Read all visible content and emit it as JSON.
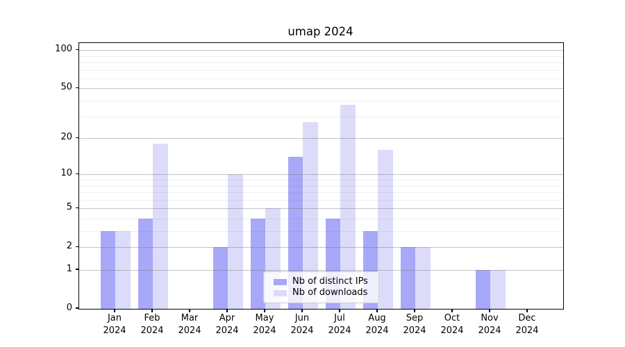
{
  "chart_data": {
    "type": "bar",
    "title": "umap 2024",
    "xlabel": "",
    "ylabel": "",
    "categories": [
      "Jan",
      "Feb",
      "Mar",
      "Apr",
      "May",
      "Jun",
      "Jul",
      "Aug",
      "Sep",
      "Oct",
      "Nov",
      "Dec"
    ],
    "category_year": "2024",
    "series": [
      {
        "name": "Nb of distinct IPs",
        "color": "#a8a8f8",
        "values": [
          3,
          4,
          0,
          2,
          4,
          14,
          4,
          3,
          2,
          0,
          1,
          0
        ]
      },
      {
        "name": "Nb of downloads",
        "color": "#dcdcfa",
        "values": [
          3,
          18,
          0,
          10,
          5,
          27,
          37,
          16,
          2,
          0,
          1,
          0
        ]
      }
    ],
    "yscale": "log1p",
    "ylim": [
      0,
      113
    ],
    "yticks": [
      0,
      1,
      2,
      5,
      10,
      20,
      50,
      100
    ],
    "minor_gridlines": [
      3,
      4,
      6,
      7,
      8,
      9,
      30,
      40,
      60,
      70,
      80,
      90
    ],
    "grid": true,
    "legend_position": "lower-center",
    "colors": {
      "major_grid": "#c3c3c3",
      "minor_grid": "#ececec",
      "spine": "#000000",
      "text": "#000000"
    }
  }
}
